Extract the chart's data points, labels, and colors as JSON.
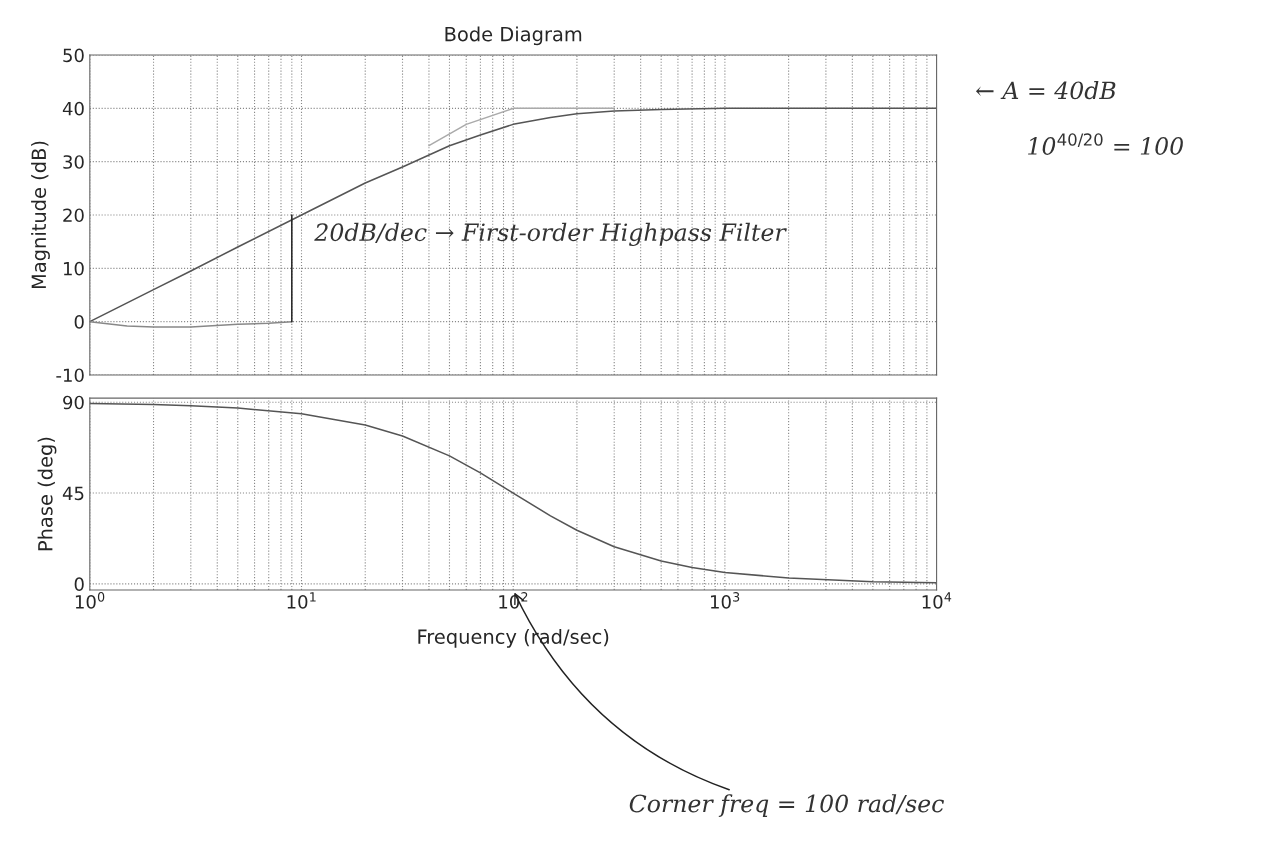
{
  "chart_data": [
    {
      "type": "line",
      "title": "Bode Diagram",
      "ylabel": "Magnitude (dB)",
      "log": "x",
      "xlim": [
        1,
        10000
      ],
      "ylim": [
        -10,
        50
      ],
      "xticks": [
        1,
        10,
        100,
        1000,
        10000
      ],
      "yticks": [
        -10,
        0,
        10,
        20,
        30,
        40,
        50
      ],
      "tick_labels": "y",
      "grid": true,
      "series": [
        {
          "color": "#555555",
          "x": [
            1,
            2,
            3,
            5,
            10,
            20,
            30,
            50,
            70,
            100,
            150,
            200,
            300,
            500,
            1000,
            10000
          ],
          "values": [
            0,
            6,
            9.5,
            14,
            20,
            26,
            29,
            33,
            35,
            37,
            38.3,
            39,
            39.5,
            39.8,
            40,
            40
          ]
        },
        {
          "color": "#888888",
          "x": [
            1,
            1.5,
            2,
            3,
            5,
            7,
            9
          ],
          "values": [
            0,
            -0.8,
            -1,
            -1,
            -0.5,
            -0.3,
            0
          ]
        },
        {
          "color": "#222222",
          "x": [
            9,
            9
          ],
          "values": [
            0,
            20
          ]
        },
        {
          "color": "#aaaaaa",
          "x": [
            40,
            60,
            100,
            200,
            300
          ],
          "values": [
            33,
            37,
            40,
            40,
            40
          ]
        }
      ],
      "annotations": [
        "← A = 40dB",
        "10$^{40/20}$ = 100",
        "20dB/dec → First-order Highpass Filter"
      ]
    },
    {
      "type": "line",
      "xlabel": "Frequency (rad/sec)",
      "ylabel": "Phase (deg)",
      "log": "x",
      "xlim": [
        1,
        10000
      ],
      "ylim": [
        -3,
        92
      ],
      "xticks": [
        {
          "value": 1,
          "label": "10$^{0}$"
        },
        {
          "value": 10,
          "label": "10$^{1}$"
        },
        {
          "value": 100,
          "label": "10$^{2}$"
        },
        {
          "value": 1000,
          "label": "10$^{3}$"
        },
        {
          "value": 10000,
          "label": "10$^{4}$"
        }
      ],
      "yticks": [
        0,
        45,
        90
      ],
      "grid": true,
      "series": [
        {
          "color": "#555555",
          "x": [
            1,
            2,
            3,
            5,
            10,
            20,
            30,
            50,
            70,
            100,
            150,
            200,
            300,
            500,
            700,
            1000,
            2000,
            5000,
            10000
          ],
          "values": [
            89.4,
            88.9,
            88.3,
            87.1,
            84.3,
            78.7,
            73.3,
            63.4,
            55,
            45,
            33.7,
            26.6,
            18.4,
            11.3,
            8.1,
            5.7,
            2.9,
            1.1,
            0.6
          ]
        }
      ],
      "annotations": [
        "Corner freq = 100 rad/sec"
      ]
    }
  ]
}
